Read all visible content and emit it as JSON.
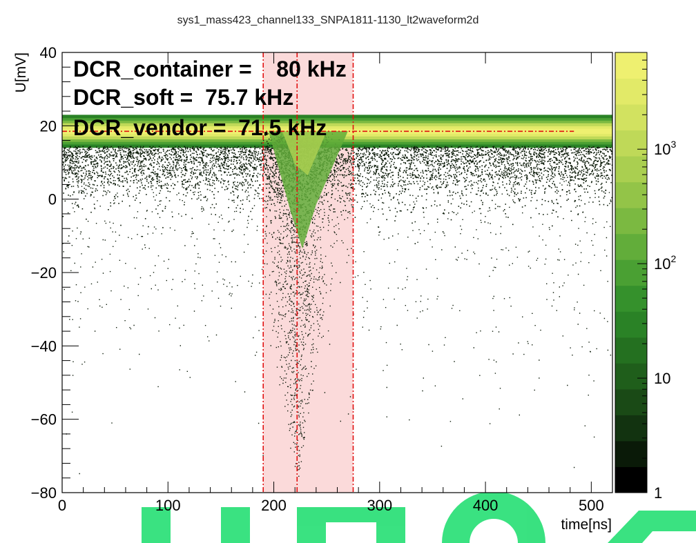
{
  "chart_data": {
    "type": "heatmap",
    "title": "sys1_mass423_channel133_SNPA1811-1130_lt2waveform2d",
    "xlabel": "time[ns]",
    "ylabel": "U[mV]",
    "xlim": [
      0,
      520
    ],
    "ylim": [
      -80,
      40
    ],
    "x_ticks": [
      0,
      100,
      200,
      300,
      400,
      500
    ],
    "y_ticks": [
      -80,
      -60,
      -40,
      -20,
      0,
      20,
      40
    ],
    "colorbar": {
      "scale": "log",
      "range": [
        1,
        7000
      ],
      "tick_labels": [
        {
          "value": 1,
          "base": "1",
          "exp": ""
        },
        {
          "value": 10,
          "base": "10",
          "exp": ""
        },
        {
          "value": 100,
          "base": "10",
          "exp": "2"
        },
        {
          "value": 1000,
          "base": "10",
          "exp": "3"
        }
      ],
      "colors": [
        "#000000",
        "#0a1a08",
        "#123310",
        "#1a4a16",
        "#1f5e1b",
        "#247020",
        "#2a8226",
        "#35912c",
        "#4aa033",
        "#62ad3a",
        "#7bb941",
        "#93c448",
        "#aacf50",
        "#bfd958",
        "#d2e260",
        "#e2ea68",
        "#eef070"
      ]
    },
    "baseline_mv": 18.5,
    "signal_window_ns": [
      190,
      275
    ],
    "peak_time_ns": 222,
    "pulse_min_mv": -75,
    "annotations": [
      {
        "label": "DCR_container",
        "value": "80 kHz",
        "text": "DCR_container =    80 kHz"
      },
      {
        "label": "DCR_soft",
        "value": "75.7 kHz",
        "text": "DCR_soft =  75.7 kHz"
      },
      {
        "label": "DCR_vendor",
        "value": "71.5 kHz",
        "text": "DCR_vendor =  71.5 kHz"
      }
    ]
  },
  "colors": {
    "window_fill": "#fbdada",
    "window_line": "#e01010",
    "baseline_line": "#e01010",
    "watermark": "#2fe07a"
  }
}
